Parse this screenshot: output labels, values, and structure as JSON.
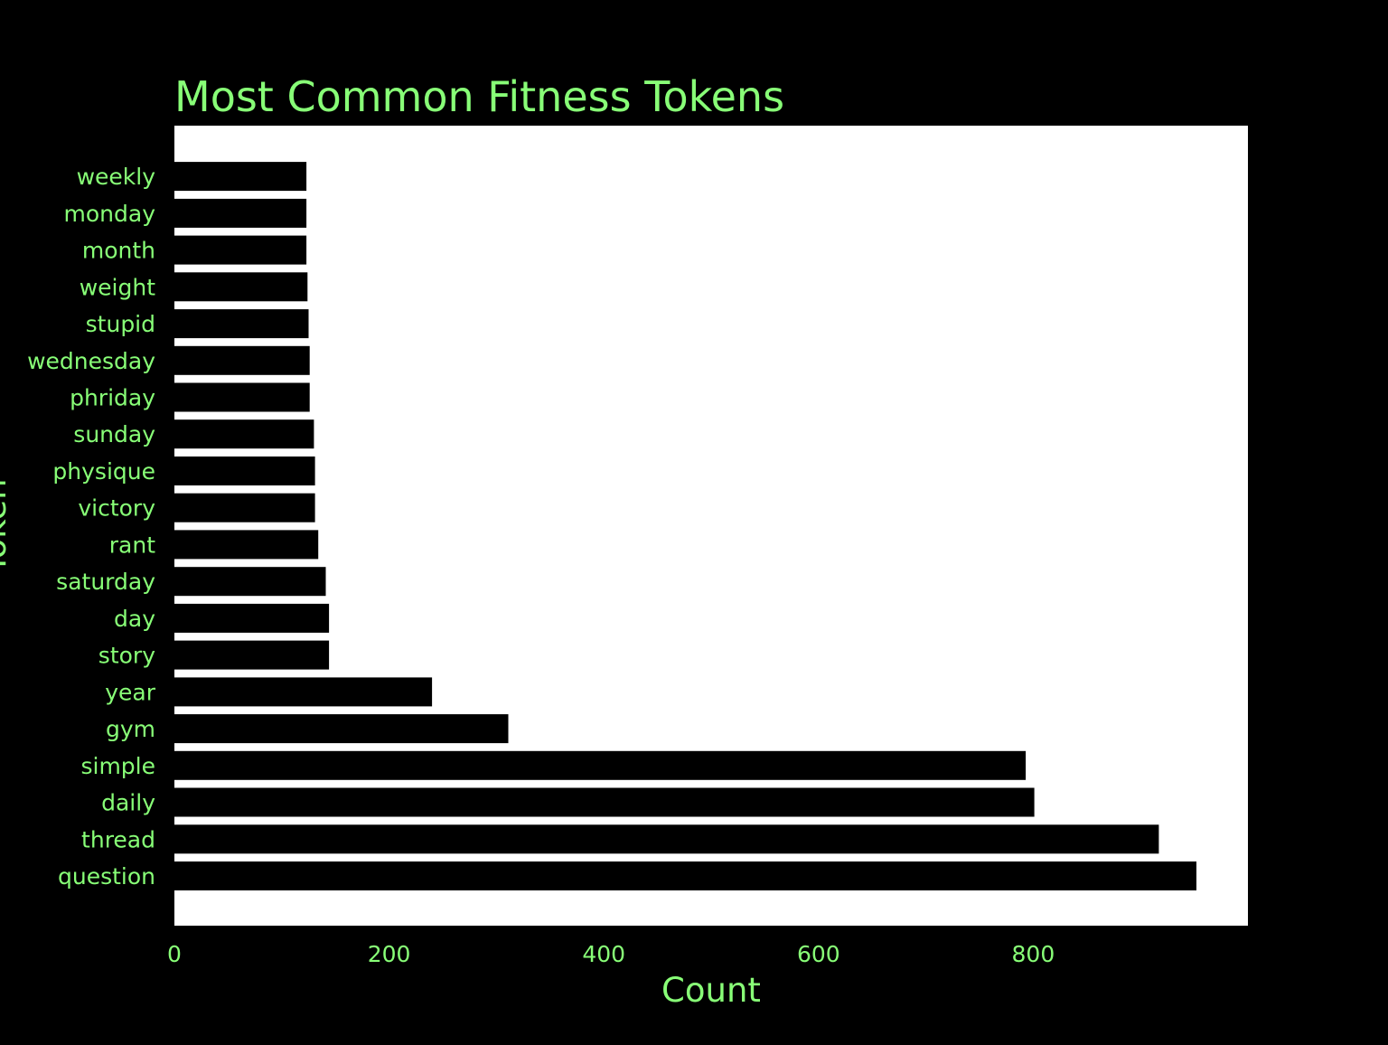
{
  "colors": {
    "background": "#000000",
    "plot_background": "#ffffff",
    "bar": "#000000",
    "text": "#88ff77"
  },
  "chart_data": {
    "type": "bar",
    "orientation": "horizontal",
    "title": "Most Common Fitness Tokens",
    "xlabel": "Count",
    "ylabel": "Token",
    "xlim": [
      0,
      1000
    ],
    "xticks": [
      0,
      200,
      400,
      600,
      800
    ],
    "grid": false,
    "legend": "none",
    "categories": [
      "question",
      "thread",
      "daily",
      "simple",
      "gym",
      "year",
      "story",
      "day",
      "saturday",
      "rant",
      "victory",
      "physique",
      "sunday",
      "phriday",
      "wednesday",
      "stupid",
      "weight",
      "month",
      "monday",
      "weekly"
    ],
    "values": [
      952,
      917,
      801,
      793,
      311,
      240,
      144,
      144,
      141,
      134,
      131,
      131,
      130,
      126,
      126,
      125,
      124,
      123,
      123,
      123
    ]
  }
}
